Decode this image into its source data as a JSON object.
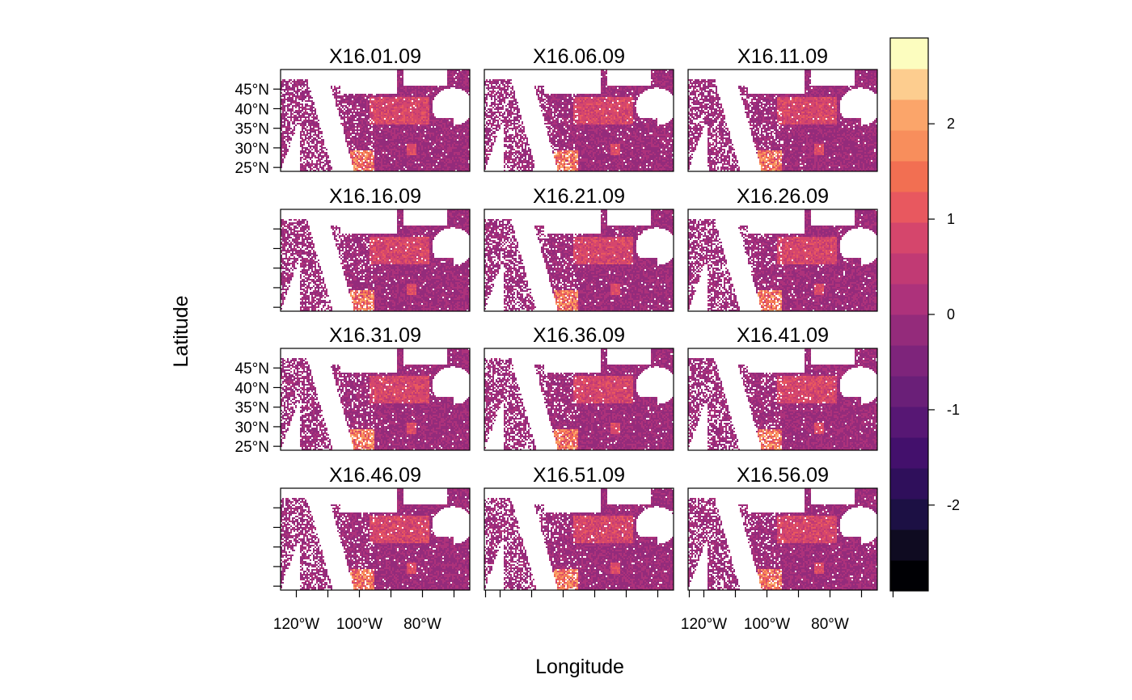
{
  "chart_data": {
    "type": "heatmap",
    "panels": [
      "X16.01.09",
      "X16.06.09",
      "X16.11.09",
      "X16.16.09",
      "X16.21.09",
      "X16.26.09",
      "X16.31.09",
      "X16.36.09",
      "X16.41.09",
      "X16.46.09",
      "X16.51.09",
      "X16.56.09"
    ],
    "layout": {
      "rows": 4,
      "cols": 3
    },
    "xlabel": "Longitude",
    "ylabel": "Latitude",
    "xticks": [
      -120,
      -110,
      -100,
      -90,
      -80,
      -70,
      -60
    ],
    "xtick_labels": [
      "120°W",
      "100°W",
      "80°W"
    ],
    "xtick_label_values": [
      -120,
      -100,
      -80
    ],
    "yticks": [
      25,
      30,
      35,
      40,
      45
    ],
    "ytick_labels": [
      "25°N",
      "30°N",
      "35°N",
      "40°N",
      "45°N"
    ],
    "xlim": [
      -125,
      -65
    ],
    "ylim": [
      24,
      50
    ],
    "colorbar": {
      "range": [
        -2.9,
        2.9
      ],
      "ticks": [
        -2,
        -1,
        0,
        1,
        2
      ],
      "tick_labels": [
        "-2",
        "-1",
        "0",
        "1",
        "2"
      ],
      "colors": [
        "#000004",
        "#0f0b21",
        "#1c1044",
        "#2f0f5b",
        "#43106c",
        "#571774",
        "#6a1f78",
        "#7e247b",
        "#942b7b",
        "#ad327b",
        "#c13a74",
        "#d5466c",
        "#e8585f",
        "#f26f52",
        "#f88e5c",
        "#fba56a",
        "#fdcd8f",
        "#fcfdbf"
      ]
    }
  }
}
